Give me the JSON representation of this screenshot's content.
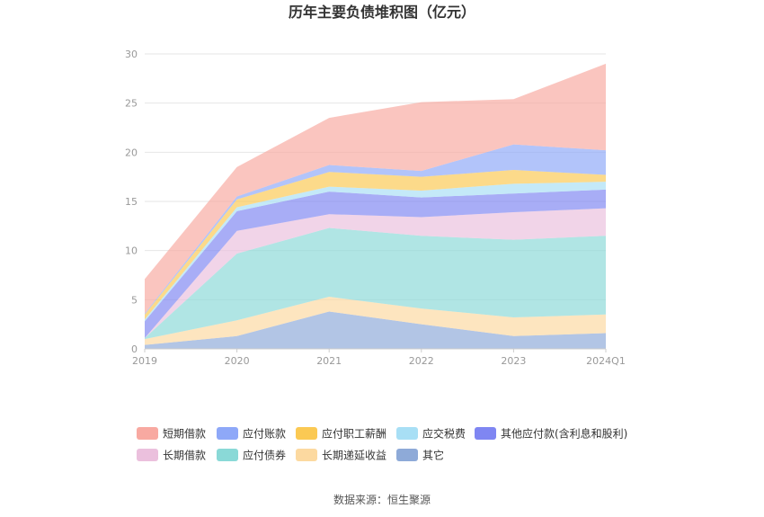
{
  "chart_data": {
    "type": "area",
    "stacked": true,
    "title": "历年主要负债堆积图（亿元）",
    "categories": [
      "2019",
      "2020",
      "2021",
      "2022",
      "2023",
      "2024Q1"
    ],
    "ylim": [
      0,
      30
    ],
    "yticks": [
      0,
      5,
      10,
      15,
      20,
      25,
      30
    ],
    "grid": true,
    "legend_position": "bottom",
    "source": "数据来源：恒生聚源",
    "series": [
      {
        "name": "其它",
        "color": "#8eaad8",
        "values": [
          0.4,
          1.3,
          3.8,
          2.5,
          1.3,
          1.6
        ]
      },
      {
        "name": "长期递延收益",
        "color": "#fcd9a0",
        "values": [
          0.6,
          1.6,
          1.5,
          1.6,
          1.9,
          1.9
        ]
      },
      {
        "name": "应付债券",
        "color": "#8ad9d7",
        "values": [
          0.1,
          6.8,
          7.0,
          7.4,
          7.9,
          8.0
        ]
      },
      {
        "name": "长期借款",
        "color": "#ebc0dd",
        "values": [
          0.0,
          2.3,
          1.4,
          1.9,
          2.8,
          2.8
        ]
      },
      {
        "name": "其他应付款(含利息和股利)",
        "color": "#7f86f2",
        "values": [
          1.7,
          2.0,
          2.3,
          2.0,
          1.9,
          1.9
        ]
      },
      {
        "name": "应交税费",
        "color": "#a8dff5",
        "values": [
          0.2,
          0.4,
          0.5,
          0.7,
          1.0,
          0.8
        ]
      },
      {
        "name": "应付职工薪酬",
        "color": "#fbc953",
        "values": [
          0.5,
          0.8,
          1.5,
          1.4,
          1.4,
          0.7
        ]
      },
      {
        "name": "应付账款",
        "color": "#8ea8f8",
        "values": [
          0.1,
          0.3,
          0.7,
          0.6,
          2.6,
          2.5
        ]
      },
      {
        "name": "短期借款",
        "color": "#f8a9a1",
        "values": [
          3.5,
          3.0,
          4.8,
          7.0,
          4.6,
          8.8
        ]
      }
    ],
    "legend_order": [
      "短期借款",
      "应付账款",
      "应付职工薪酬",
      "应交税费",
      "其他应付款(含利息和股利)",
      "长期借款",
      "应付债券",
      "长期递延收益",
      "其它"
    ]
  }
}
